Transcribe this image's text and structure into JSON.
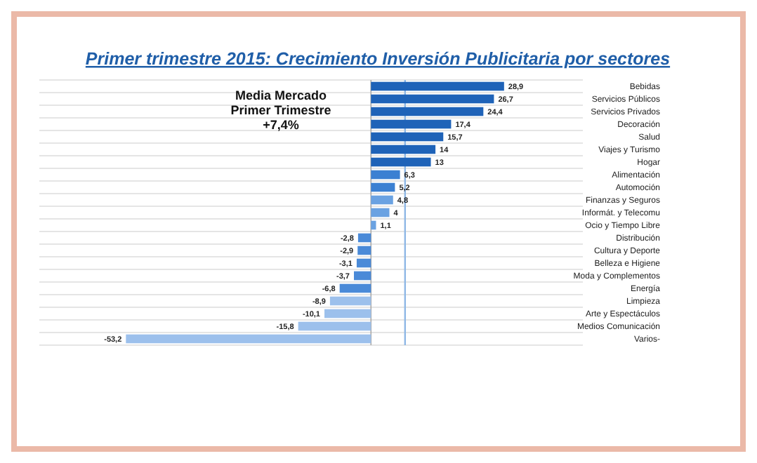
{
  "chart_data": {
    "type": "bar",
    "orientation": "horizontal",
    "title": "Primer trimestre 2015: Crecimiento Inversión Publicitaria por sectores",
    "categories": [
      "Bebidas",
      "Servicios Públicos",
      "Servicios Privados",
      "Decoración",
      "Salud",
      "Viajes y Turismo",
      "Hogar",
      "Alimentación",
      "Automoción",
      "Finanzas y Seguros",
      "Informát. y Telecomu",
      "Ocio y Tiempo Libre",
      "Distribución",
      "Cultura y Deporte",
      "Belleza e Higiene",
      "Moda y Complementos",
      "Energía",
      "Limpieza",
      "Arte y Espectáculos",
      "Medios Comunicación",
      "Varios-"
    ],
    "values": [
      28.9,
      26.7,
      24.4,
      17.4,
      15.7,
      14,
      13,
      6.3,
      5.2,
      4.8,
      4,
      1.1,
      -2.8,
      -2.9,
      -3.1,
      -3.7,
      -6.8,
      -8.9,
      -10.1,
      -15.8,
      -53.2
    ],
    "value_labels": [
      "28,9",
      "26,7",
      "24,4",
      "17,4",
      "15,7",
      "14",
      "13",
      "6,3",
      "5,2",
      "4,8",
      "4",
      "1,1",
      "-2,8",
      "-2,9",
      "-3,1",
      "-3,7",
      "-6,8",
      "-8,9",
      "-10,1",
      "-15,8",
      "-53,2"
    ],
    "colors": [
      "#1f63b8",
      "#1f63b8",
      "#1f63b8",
      "#1f63b8",
      "#1f63b8",
      "#1f63b8",
      "#1f63b8",
      "#3b80d2",
      "#3b80d2",
      "#6aa2e2",
      "#6aa2e2",
      "#6aa2e2",
      "#4a8ad8",
      "#4a8ad8",
      "#4a8ad8",
      "#4a8ad8",
      "#4a8ad8",
      "#9cc0ec",
      "#9cc0ec",
      "#9cc0ec",
      "#9cc0ec"
    ],
    "xlim": [
      -72,
      46
    ],
    "tick_labels": "y",
    "grid": "y",
    "ref_lines": [
      {
        "axis": "x",
        "value": 7.4,
        "color": "#8fb8e6"
      }
    ],
    "annotations": [
      "Media Mercado",
      "Primer Trimestre",
      "+7,4%"
    ]
  }
}
